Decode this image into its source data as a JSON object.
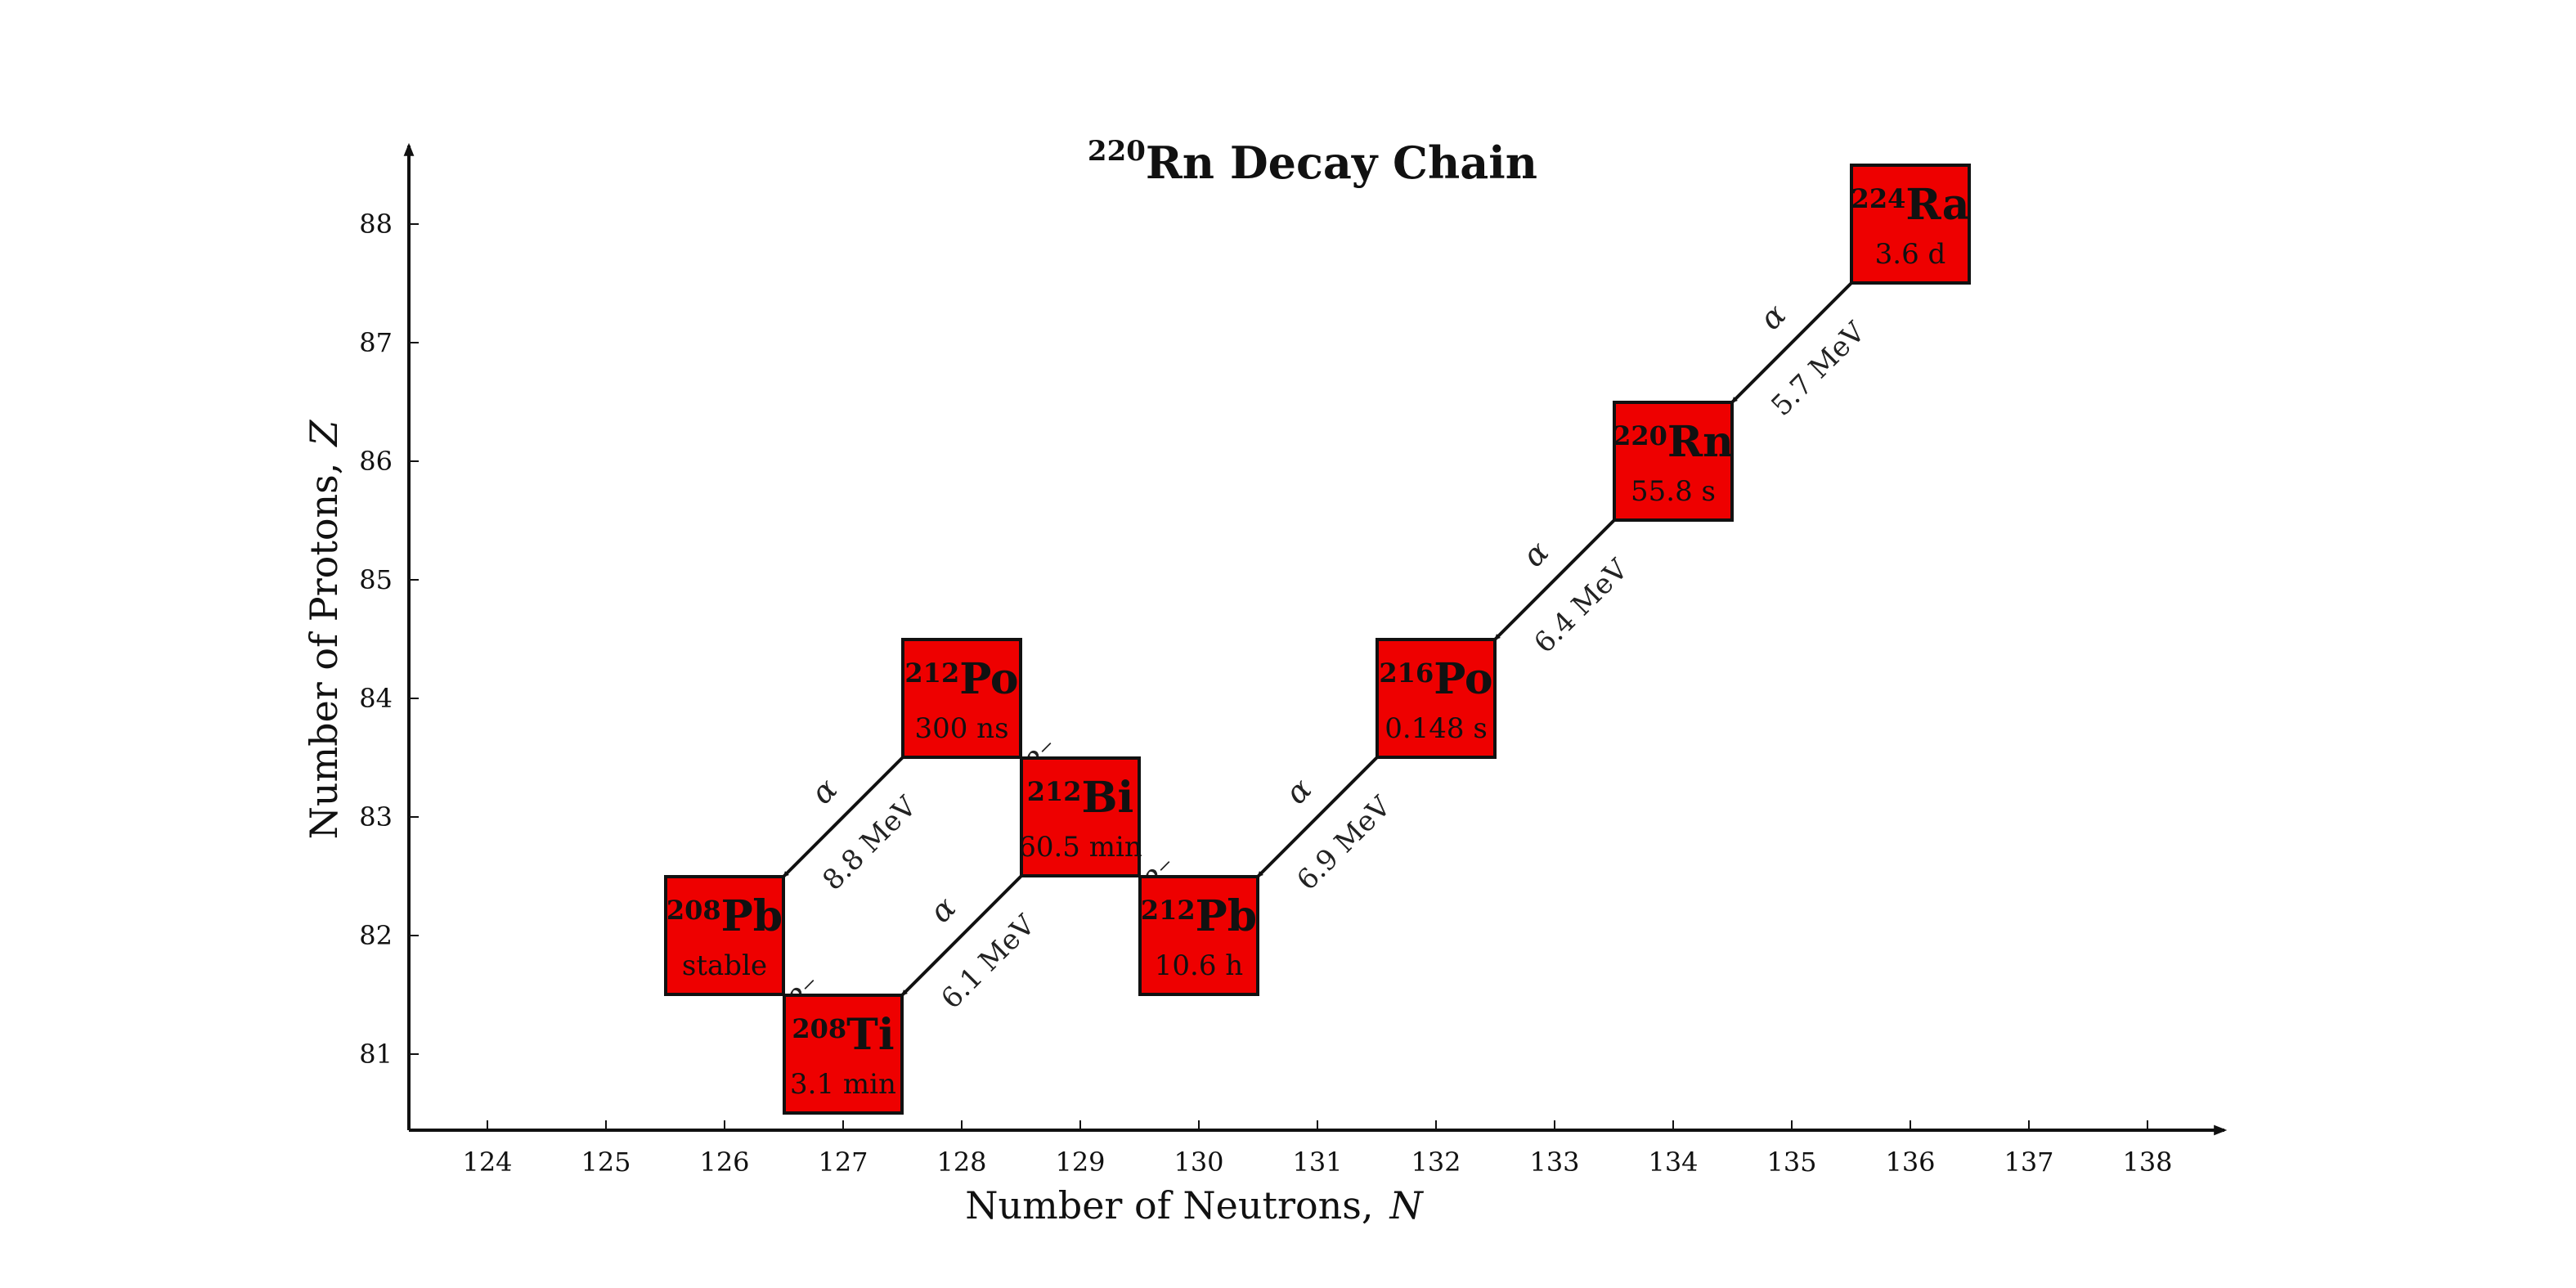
{
  "chart_data": {
    "type": "diagram",
    "title": {
      "mass": "220",
      "symbol": "Rn",
      "rest": " Decay Chain"
    },
    "xlabel": {
      "text": "Number of Neutrons,",
      "var": "N"
    },
    "ylabel": {
      "text": "Number of Protons,",
      "var": "Z"
    },
    "xticks": [
      124,
      125,
      126,
      127,
      128,
      129,
      130,
      131,
      132,
      133,
      134,
      135,
      136,
      137,
      138
    ],
    "yticks": [
      81,
      82,
      83,
      84,
      85,
      86,
      87,
      88
    ],
    "xlim": [
      123.4,
      138.7
    ],
    "ylim": [
      80.4,
      88.7
    ],
    "box_color": "#ee0000",
    "nuclides": [
      {
        "id": "ra224",
        "mass": "224",
        "symbol": "Ra",
        "N": 136,
        "Z": 88,
        "half_life": "3.6 d"
      },
      {
        "id": "rn220",
        "mass": "220",
        "symbol": "Rn",
        "N": 134,
        "Z": 86,
        "half_life": "55.8 s"
      },
      {
        "id": "po216",
        "mass": "216",
        "symbol": "Po",
        "N": 132,
        "Z": 84,
        "half_life": "0.148 s"
      },
      {
        "id": "pb212",
        "mass": "212",
        "symbol": "Pb",
        "N": 130,
        "Z": 82,
        "half_life": "10.6 h"
      },
      {
        "id": "bi212",
        "mass": "212",
        "symbol": "Bi",
        "N": 129,
        "Z": 83,
        "half_life": "60.5 min"
      },
      {
        "id": "po212",
        "mass": "212",
        "symbol": "Po",
        "N": 128,
        "Z": 84,
        "half_life": "300 ns"
      },
      {
        "id": "ti208",
        "mass": "208",
        "symbol": "Ti",
        "N": 127,
        "Z": 81,
        "half_life": "3.1 min"
      },
      {
        "id": "pb208",
        "mass": "208",
        "symbol": "Pb",
        "N": 126,
        "Z": 82,
        "half_life": "stable"
      }
    ],
    "decays": [
      {
        "from": "ra224",
        "to": "rn220",
        "mode": "α",
        "energy": "5.7 MeV"
      },
      {
        "from": "rn220",
        "to": "po216",
        "mode": "α",
        "energy": "6.4 MeV"
      },
      {
        "from": "po216",
        "to": "pb212",
        "mode": "α",
        "energy": "6.9 MeV"
      },
      {
        "from": "pb212",
        "to": "bi212",
        "mode": "β⁻",
        "energy": ""
      },
      {
        "from": "bi212",
        "to": "po212",
        "mode": "β⁻",
        "energy": ""
      },
      {
        "from": "bi212",
        "to": "ti208",
        "mode": "α",
        "energy": "6.1 MeV"
      },
      {
        "from": "po212",
        "to": "pb208",
        "mode": "α",
        "energy": "8.8 MeV"
      },
      {
        "from": "ti208",
        "to": "pb208",
        "mode": "β⁻",
        "energy": ""
      }
    ]
  }
}
